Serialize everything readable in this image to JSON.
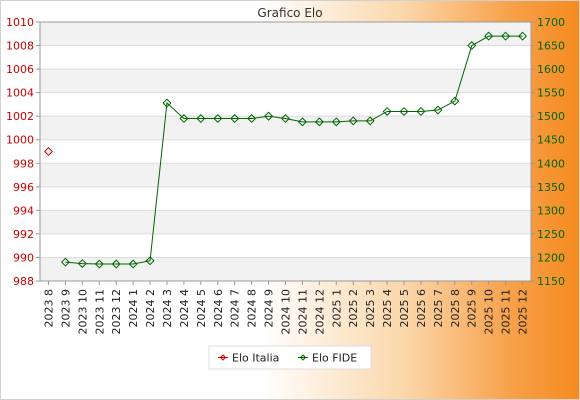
{
  "chart_data": {
    "type": "line",
    "title": "Grafico Elo",
    "categories": [
      "2023 8",
      "2023 9",
      "2023 10",
      "2023 11",
      "2023 12",
      "2024 1",
      "2024 2",
      "2024 3",
      "2024 4",
      "2024 5",
      "2024 6",
      "2024 7",
      "2024 8",
      "2024 9",
      "2024 10",
      "2024 11",
      "2024 12",
      "2025 1",
      "2025 2",
      "2025 3",
      "2025 4",
      "2025 5",
      "2025 6",
      "2025 7",
      "2025 8",
      "2025 9",
      "2025 10",
      "2025 11",
      "2025 12"
    ],
    "left_axis": {
      "ylim": [
        988,
        1010
      ],
      "ticks": [
        988,
        990,
        992,
        994,
        996,
        998,
        1000,
        1002,
        1004,
        1006,
        1008,
        1010
      ],
      "color": "#cc0000"
    },
    "right_axis": {
      "ylim": [
        1150,
        1700
      ],
      "ticks": [
        1150,
        1200,
        1250,
        1300,
        1350,
        1400,
        1450,
        1500,
        1550,
        1600,
        1650,
        1700
      ],
      "color": "#006600"
    },
    "series": [
      {
        "name": "Elo Italia",
        "axis": "left",
        "color": "#dd0000",
        "values": [
          999,
          null,
          null,
          null,
          null,
          null,
          null,
          null,
          null,
          null,
          null,
          null,
          null,
          null,
          null,
          null,
          null,
          null,
          null,
          null,
          null,
          null,
          null,
          null,
          null,
          null,
          null,
          null,
          null
        ]
      },
      {
        "name": "Elo FIDE",
        "axis": "right",
        "color": "#006600",
        "values": [
          null,
          1190,
          1187,
          1186,
          1186,
          1186,
          1193,
          1528,
          1495,
          1495,
          1495,
          1495,
          1495,
          1500,
          1495,
          1488,
          1488,
          1488,
          1490,
          1490,
          1510,
          1510,
          1510,
          1513,
          1532,
          1650,
          1670,
          1670,
          1670
        ]
      }
    ],
    "grid": true,
    "legend": "bottom-center"
  }
}
